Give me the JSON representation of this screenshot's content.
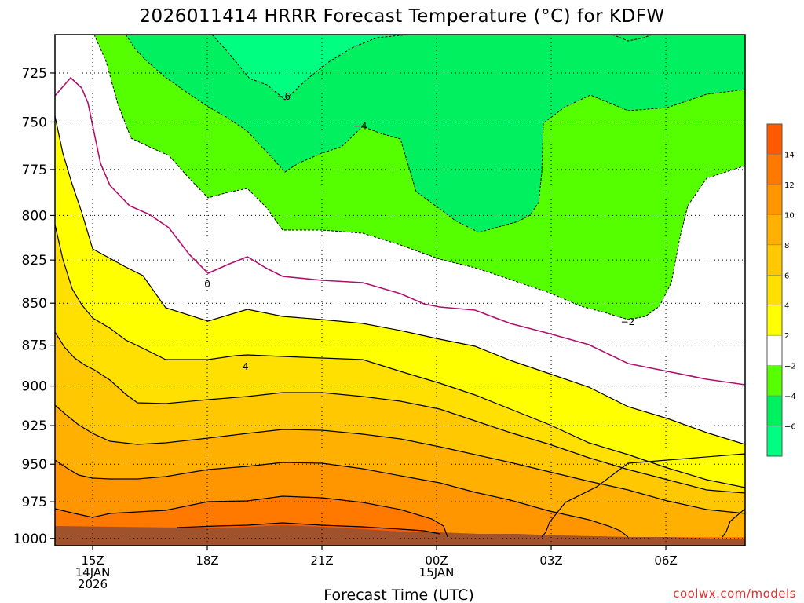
{
  "title": "2026011414 HRRR Forecast Temperature (°C) for KDFW",
  "credit": "coolwx.com/models",
  "colors": {
    "credit": "#e03030",
    "freezing_line": "#b0106e",
    "ground": "#a0522d",
    "bands": {
      "le_-6": "#00ff80",
      "-6_-4": "#00f060",
      "-4_-2": "#55ff00",
      "-2_2": "#ffffff",
      "2_4": "#ffff00",
      "4_6": "#ffe000",
      "6_8": "#ffc800",
      "8_10": "#ffb000",
      "10_12": "#ff9600",
      "12_14": "#ff7800",
      "14_16": "#ff5a00"
    }
  },
  "chart_data": {
    "type": "contour",
    "title": "2026011414 HRRR Forecast Temperature (°C) for KDFW",
    "xlabel": "Forecast Time (UTC)",
    "ylabel": "",
    "x_ticks": [
      {
        "lines": [
          "15Z",
          "14JAN",
          "2026"
        ]
      },
      {
        "lines": [
          "18Z"
        ]
      },
      {
        "lines": [
          "21Z"
        ]
      },
      {
        "lines": [
          "00Z",
          "15JAN"
        ]
      },
      {
        "lines": [
          "03Z"
        ]
      },
      {
        "lines": [
          "06Z"
        ]
      }
    ],
    "x_tick_times": [
      "2026-01-14 15Z",
      "2026-01-14 18Z",
      "2026-01-14 21Z",
      "2026-01-15 00Z",
      "2026-01-15 03Z",
      "2026-01-15 06Z"
    ],
    "y_ticks": [
      725,
      750,
      775,
      800,
      825,
      850,
      875,
      900,
      925,
      950,
      975,
      1000
    ],
    "y_ticks_labels": [
      "725",
      "750",
      "775",
      "800",
      "825",
      "850",
      "875",
      "900",
      "925",
      "950",
      "975",
      "1000"
    ],
    "y_scale": "log-pressure (inverted)",
    "ylim": [
      1005,
      706
    ],
    "grid": true,
    "contour_interval": 2,
    "contour_labels": [
      {
        "text": "−6",
        "value": -6,
        "time": "2026-01-14 20Z",
        "pressure": 737
      },
      {
        "text": "−4",
        "value": -4,
        "time": "2026-01-14 22Z",
        "pressure": 752
      },
      {
        "text": "0",
        "value": 0,
        "time": "2026-01-14 18Z",
        "pressure": 839
      },
      {
        "text": "4",
        "value": 4,
        "time": "2026-01-14 19Z",
        "pressure": 888
      },
      {
        "text": "−2",
        "value": -2,
        "time": "2026-01-15 05Z",
        "pressure": 861
      }
    ],
    "colorbar": {
      "labels": [
        "14",
        "12",
        "10",
        "8",
        "6",
        "4",
        "2",
        "−2",
        "−4",
        "−6"
      ],
      "levels": [
        16,
        14,
        12,
        10,
        8,
        6,
        4,
        2,
        -2,
        -4,
        -6,
        -8
      ],
      "colors": [
        "#ff5a00",
        "#ff7800",
        "#ff9600",
        "#ffb000",
        "#ffc800",
        "#ffe000",
        "#ffff00",
        "#ffffff",
        "#55ff00",
        "#00f060",
        "#00ff80"
      ]
    }
  }
}
